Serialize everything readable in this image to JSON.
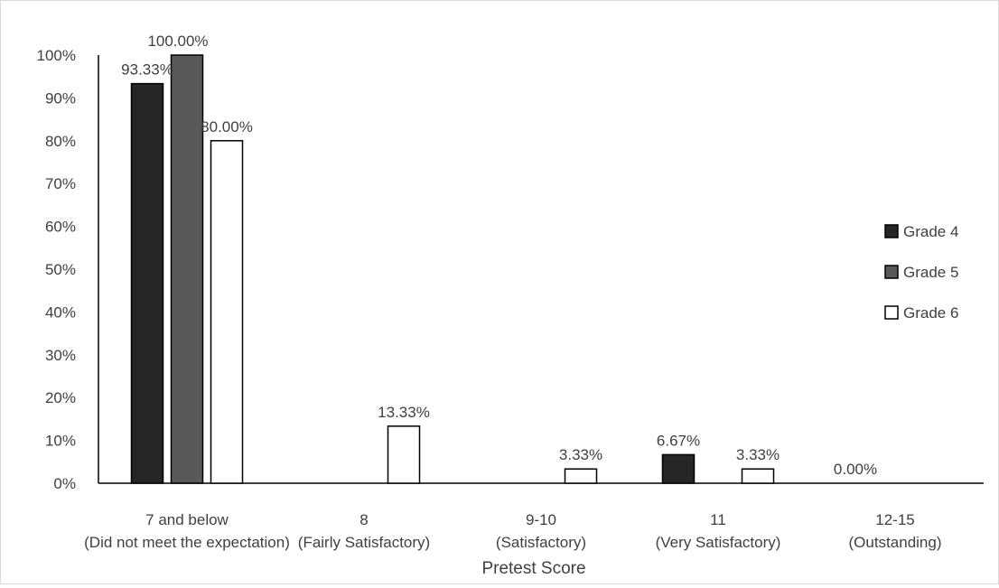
{
  "chart_data": {
    "type": "bar",
    "categories": [
      [
        "7 and below",
        "(Did not meet the expectation)"
      ],
      [
        "8",
        "(Fairly Satisfactory)"
      ],
      [
        "9-10",
        "(Satisfactory)"
      ],
      [
        "11",
        "(Very Satisfactory)"
      ],
      [
        "12-15",
        "(Outstanding)"
      ]
    ],
    "series": [
      {
        "name": "Grade 4",
        "color": "#262626",
        "values": [
          93.33,
          0,
          0,
          6.67,
          0
        ],
        "labels": [
          "93.33%",
          "",
          "",
          "6.67%",
          "0.00%"
        ]
      },
      {
        "name": "Grade 5",
        "color": "#595959",
        "values": [
          100,
          0,
          0,
          0,
          0
        ],
        "labels": [
          "100.00%",
          "",
          "",
          "",
          ""
        ]
      },
      {
        "name": "Grade 6",
        "color": "#ffffff",
        "values": [
          80,
          13.33,
          3.33,
          3.33,
          0
        ],
        "labels": [
          "80.00%",
          "13.33%",
          "3.33%",
          "3.33%",
          ""
        ]
      }
    ],
    "xlabel": "Pretest Score",
    "ylabel": "",
    "ylim": [
      0,
      100
    ],
    "yticks": [
      "0%",
      "10%",
      "20%",
      "30%",
      "40%",
      "50%",
      "60%",
      "70%",
      "80%",
      "90%",
      "100%"
    ],
    "grid": false,
    "legend": "right"
  }
}
